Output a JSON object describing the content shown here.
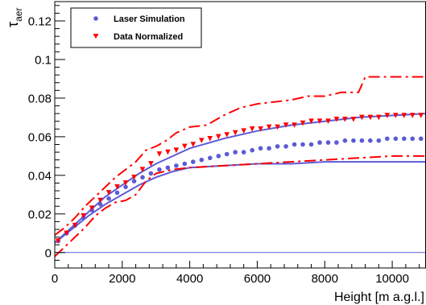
{
  "chart_data": {
    "type": "scatter",
    "title": "",
    "xlabel": "Height [m a.g.l.]",
    "ylabel_main": "τ",
    "ylabel_sub": "aer",
    "xlim": [
      0,
      11000
    ],
    "ylim": [
      -0.008,
      0.13
    ],
    "x_ticks": [
      0,
      2000,
      4000,
      6000,
      8000,
      10000
    ],
    "x_tick_labels": [
      "0",
      "2000",
      "4000",
      "6000",
      "8000",
      "10000"
    ],
    "y_ticks": [
      0,
      0.02,
      0.04,
      0.06,
      0.08,
      0.1,
      0.12
    ],
    "y_tick_labels": [
      "0",
      "0.02",
      "0.04",
      "0.06",
      "0.08",
      "0.1",
      "0.12"
    ],
    "legend_position": "top-left",
    "colors": {
      "simulation": "#5b5bd6",
      "data": "#ff0000",
      "zero_line": "#5b5bd6"
    },
    "series": [
      {
        "name": "Laser Simulation",
        "kind": "points",
        "marker": "circle",
        "x": [
          100,
          350,
          600,
          850,
          1100,
          1350,
          1600,
          1850,
          2100,
          2350,
          2600,
          2850,
          3100,
          3350,
          3600,
          3850,
          4100,
          4350,
          4600,
          4850,
          5100,
          5350,
          5600,
          5850,
          6100,
          6350,
          6600,
          6850,
          7100,
          7350,
          7600,
          7850,
          8100,
          8350,
          8600,
          8850,
          9100,
          9350,
          9600,
          9850,
          10100,
          10350,
          10600,
          10850
        ],
        "y": [
          0.006,
          0.01,
          0.014,
          0.018,
          0.022,
          0.025,
          0.028,
          0.031,
          0.034,
          0.037,
          0.039,
          0.041,
          0.043,
          0.044,
          0.045,
          0.046,
          0.047,
          0.048,
          0.049,
          0.05,
          0.051,
          0.052,
          0.052,
          0.053,
          0.054,
          0.054,
          0.055,
          0.055,
          0.056,
          0.056,
          0.056,
          0.057,
          0.057,
          0.057,
          0.058,
          0.058,
          0.058,
          0.058,
          0.058,
          0.059,
          0.059,
          0.059,
          0.059,
          0.059
        ]
      },
      {
        "name": "Data Normalized",
        "kind": "points",
        "marker": "triangle-down",
        "x": [
          100,
          350,
          600,
          850,
          1100,
          1350,
          1600,
          1850,
          2100,
          2350,
          2600,
          2850,
          3100,
          3350,
          3600,
          3850,
          4100,
          4350,
          4600,
          4850,
          5100,
          5350,
          5600,
          5850,
          6100,
          6350,
          6600,
          6850,
          7100,
          7350,
          7600,
          7850,
          8100,
          8350,
          8600,
          8850,
          9100,
          9350,
          9600,
          9850,
          10100,
          10350,
          10600,
          10850
        ],
        "y": [
          0.006,
          0.01,
          0.014,
          0.019,
          0.023,
          0.027,
          0.031,
          0.034,
          0.036,
          0.039,
          0.043,
          0.046,
          0.051,
          0.052,
          0.053,
          0.055,
          0.056,
          0.058,
          0.059,
          0.06,
          0.061,
          0.062,
          0.063,
          0.064,
          0.064,
          0.065,
          0.065,
          0.066,
          0.066,
          0.067,
          0.068,
          0.068,
          0.068,
          0.069,
          0.069,
          0.069,
          0.07,
          0.07,
          0.07,
          0.071,
          0.071,
          0.071,
          0.071,
          0.071
        ]
      },
      {
        "name": "Simulation upper band",
        "kind": "line",
        "style": "solid",
        "x": [
          0,
          500,
          1000,
          1500,
          2000,
          2500,
          3000,
          3500,
          4000,
          5000,
          6000,
          7000,
          8000,
          9000,
          10000,
          11000
        ],
        "y": [
          0.005,
          0.013,
          0.021,
          0.029,
          0.035,
          0.041,
          0.046,
          0.05,
          0.054,
          0.059,
          0.063,
          0.066,
          0.068,
          0.07,
          0.071,
          0.072
        ]
      },
      {
        "name": "Simulation lower band",
        "kind": "line",
        "style": "solid",
        "x": [
          0,
          500,
          1000,
          1500,
          2000,
          2500,
          3000,
          3500,
          4000,
          5000,
          6000,
          7000,
          8000,
          9000,
          10000,
          11000
        ],
        "y": [
          0.005,
          0.012,
          0.019,
          0.025,
          0.03,
          0.035,
          0.039,
          0.042,
          0.044,
          0.045,
          0.046,
          0.046,
          0.047,
          0.047,
          0.047,
          0.047
        ]
      },
      {
        "name": "Data upper band",
        "kind": "line",
        "style": "dash-dot",
        "x": [
          0,
          300,
          600,
          900,
          1200,
          1500,
          1800,
          2100,
          2400,
          2700,
          3000,
          3300,
          3600,
          4000,
          4500,
          5000,
          5500,
          6000,
          7000,
          7500,
          8000,
          8500,
          9000,
          9200,
          9500,
          10000,
          11000
        ],
        "y": [
          0.009,
          0.013,
          0.018,
          0.024,
          0.029,
          0.034,
          0.039,
          0.043,
          0.047,
          0.053,
          0.055,
          0.058,
          0.062,
          0.065,
          0.066,
          0.071,
          0.075,
          0.077,
          0.079,
          0.081,
          0.081,
          0.083,
          0.083,
          0.091,
          0.091,
          0.091,
          0.091
        ]
      },
      {
        "name": "Data lower band",
        "kind": "line",
        "style": "dash-dot",
        "x": [
          0,
          300,
          600,
          900,
          1200,
          1500,
          1800,
          2100,
          2400,
          2700,
          3000,
          3500,
          4000,
          5000,
          6000,
          7000,
          8000,
          9000,
          10000,
          11000
        ],
        "y": [
          -0.002,
          0.003,
          0.008,
          0.013,
          0.019,
          0.023,
          0.026,
          0.027,
          0.03,
          0.037,
          0.041,
          0.043,
          0.044,
          0.045,
          0.046,
          0.047,
          0.048,
          0.049,
          0.05,
          0.05
        ]
      },
      {
        "name": "Zero line",
        "kind": "line",
        "style": "solid",
        "x": [
          0,
          11000
        ],
        "y": [
          0,
          0
        ]
      }
    ]
  }
}
